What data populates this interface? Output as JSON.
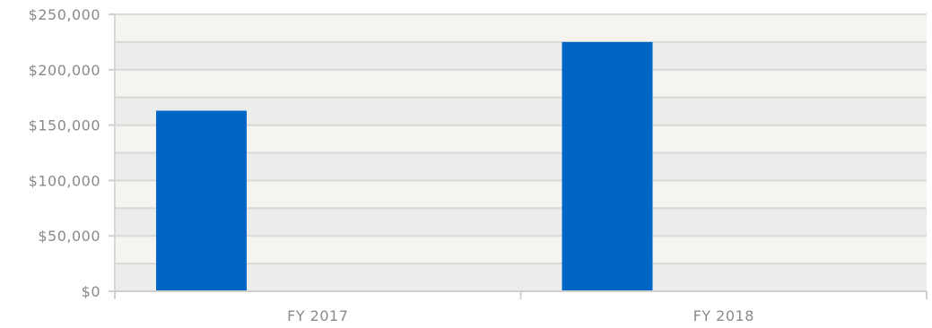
{
  "chart_data": {
    "type": "bar",
    "categories": [
      "FY 2017",
      "FY 2018"
    ],
    "series": [
      {
        "values": [
          163000,
          225000
        ],
        "color": "#0066c5"
      }
    ],
    "y_ticks": [
      0,
      50000,
      100000,
      150000,
      200000,
      250000
    ],
    "y_tick_labels": [
      "$0",
      "$50,000",
      "$100,000",
      "$150,000",
      "$200,000",
      "$250,000"
    ],
    "ylim": [
      0,
      250000
    ],
    "grid": true,
    "legend": "none",
    "band_colors": [
      "#ecedeb",
      "#f5f4f1"
    ],
    "gridline_color": "#d8d8d8"
  }
}
